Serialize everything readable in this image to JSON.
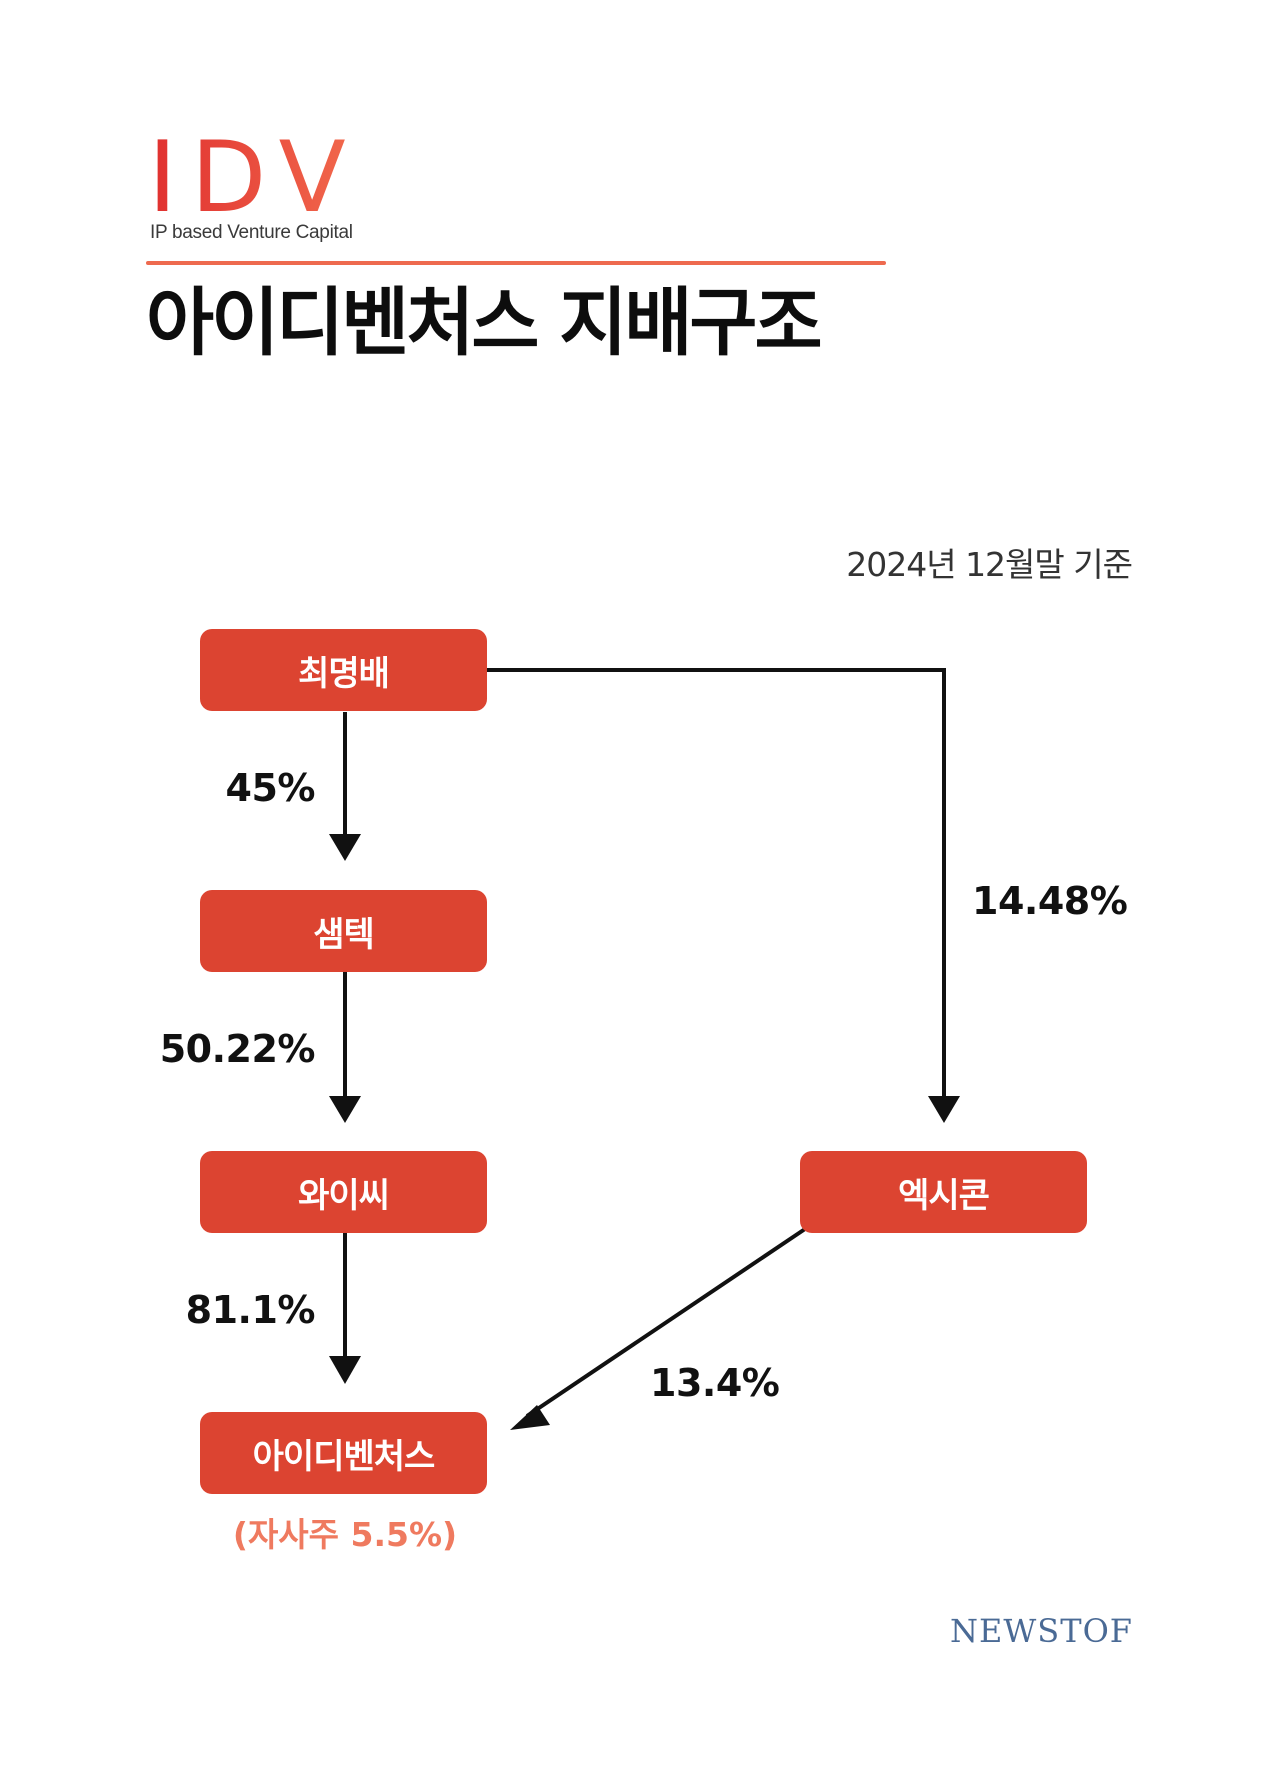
{
  "header": {
    "logo_text": "IDV",
    "logo_tagline": "IP based Venture Capital",
    "title": "아이디벤처스 지배구조"
  },
  "as_of": "2024년 12월말 기준",
  "nodes": {
    "choi": "최명배",
    "samtech": "샘텍",
    "yc": "와이씨",
    "idventures": "아이디벤처스",
    "exicon": "엑시콘"
  },
  "edges": {
    "choi_to_samtech": "45%",
    "samtech_to_yc": "50.22%",
    "yc_to_idventures": "81.1%",
    "choi_to_exicon": "14.48%",
    "exicon_to_idventures": "13.4%"
  },
  "treasury_note": "(자사주 5.5%)",
  "footer": {
    "brand": "NEWSTOF"
  },
  "colors": {
    "node_fill": "#dc4431",
    "accent_rule": "#ee6a4f",
    "note_text": "#ef7a5f",
    "brand_text": "#4a6a95"
  }
}
